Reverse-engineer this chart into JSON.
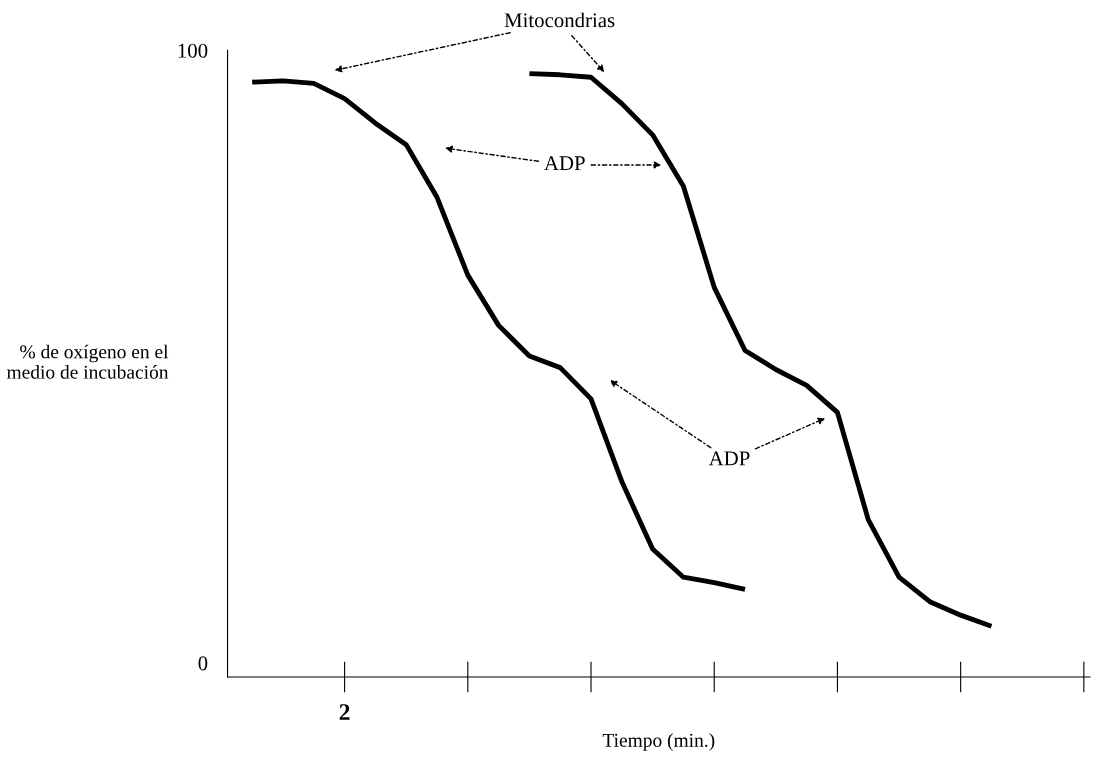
{
  "chart_data": {
    "type": "line",
    "xlabel": "Tiempo (min.)",
    "ylabel": "% de oxígeno en el\nmedio de incubación",
    "categories": [
      null,
      null,
      null,
      "2",
      null,
      null,
      null,
      null,
      null,
      null,
      null,
      null,
      null,
      null,
      null,
      null,
      null,
      null,
      null,
      null,
      null,
      null,
      null,
      null,
      null
    ],
    "ylim": [
      -2.3,
      100
    ],
    "yticks": [
      {
        "value": 0,
        "label": "0"
      },
      {
        "value": 100,
        "label": "100"
      }
    ],
    "grid": false,
    "legend": false,
    "marker": "none",
    "line_style": "solid",
    "series": [
      {
        "color": "#000000",
        "values": [
          94.8,
          95.0,
          94.6,
          92.1,
          88.1,
          84.6,
          76.0,
          63.3,
          55.1,
          50.1,
          48.2,
          43.1,
          29.6,
          18.6,
          14.0,
          13.1,
          12.0,
          null,
          null,
          null,
          null,
          null,
          null,
          null,
          null
        ]
      },
      {
        "color": "#000000",
        "values": [
          null,
          null,
          null,
          null,
          null,
          null,
          null,
          null,
          null,
          96.2,
          96.0,
          95.6,
          91.3,
          86.2,
          77.8,
          61.3,
          51.0,
          47.9,
          45.3,
          40.9,
          23.4,
          14.0,
          10.0,
          7.8,
          6.0
        ]
      }
    ],
    "annotations": [
      "Mitocondrias",
      "ADP",
      "ADP"
    ]
  }
}
